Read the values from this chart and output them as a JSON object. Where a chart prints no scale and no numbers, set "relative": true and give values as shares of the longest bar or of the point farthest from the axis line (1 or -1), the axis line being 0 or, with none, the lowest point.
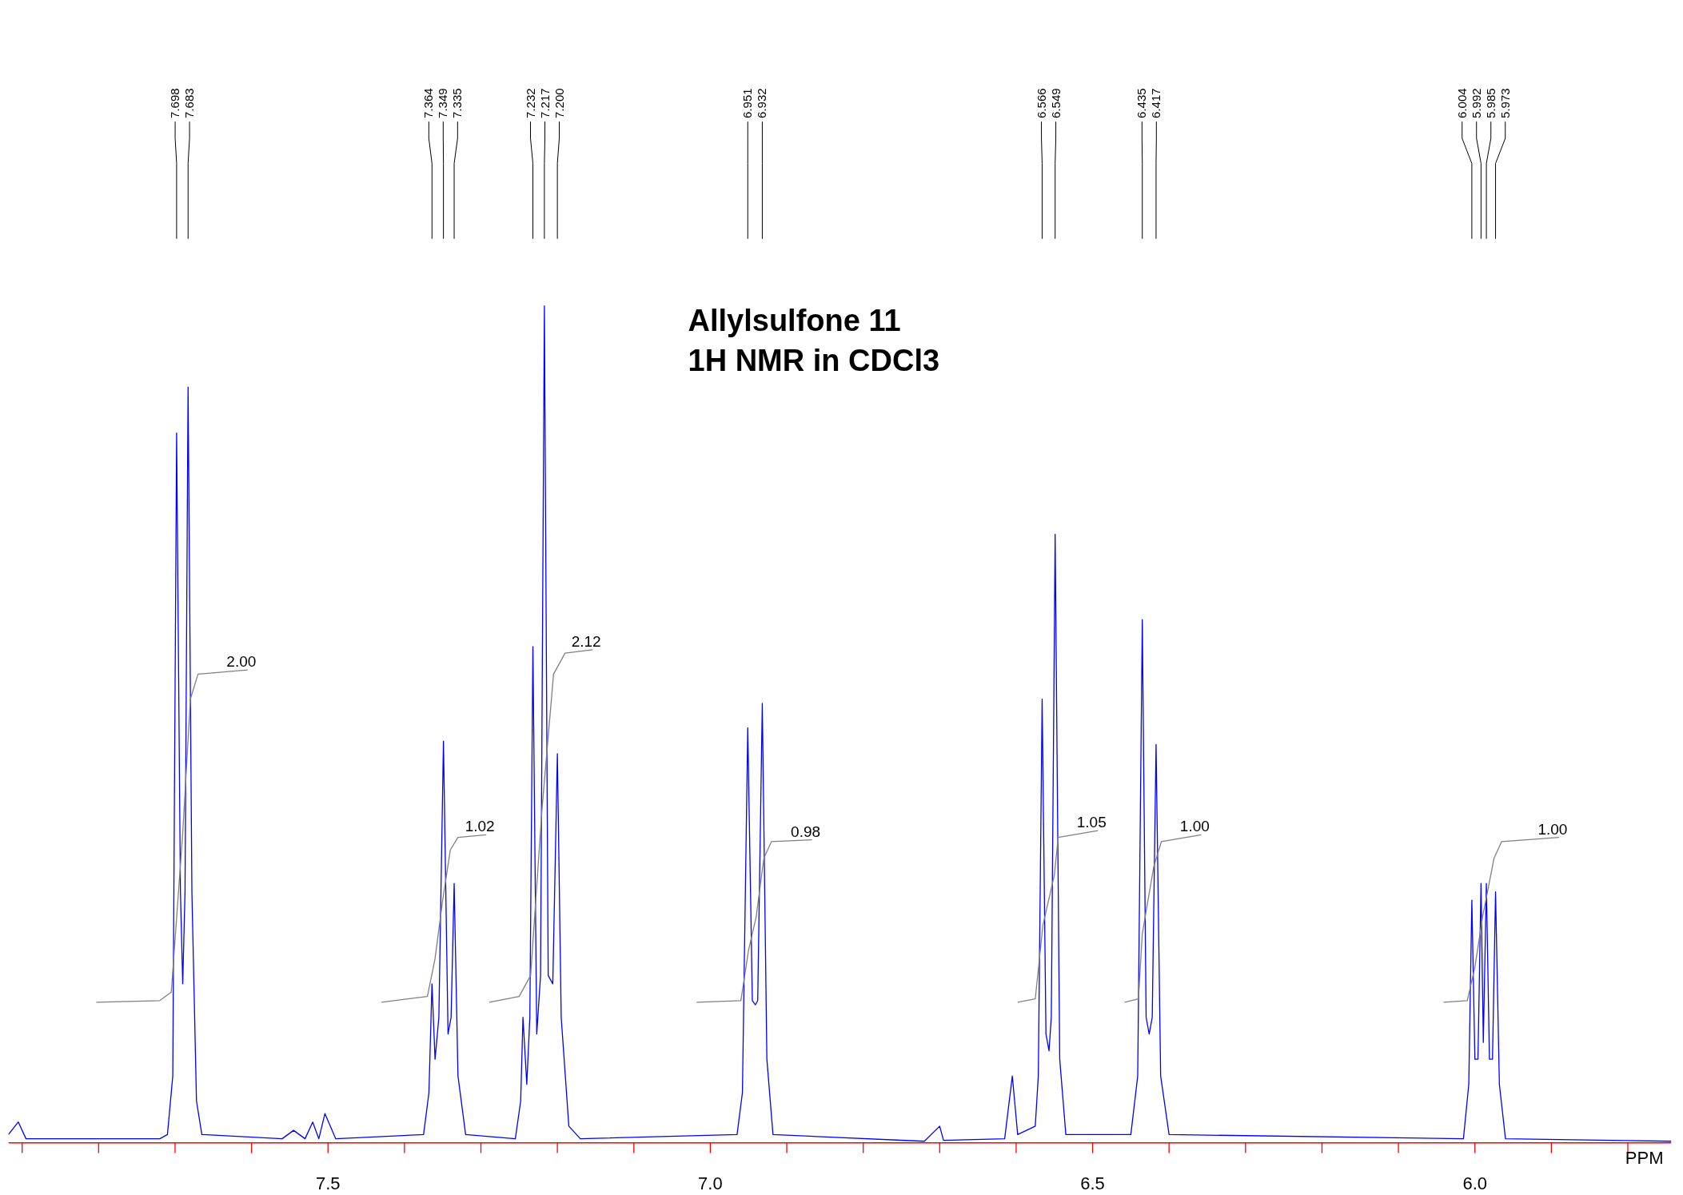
{
  "chart_data": {
    "type": "line",
    "relative": true,
    "title": "Allylsulfone 11\n1H NMR in CDCl3",
    "xlabel": "PPM",
    "xlim": [
      7.918,
      5.743
    ],
    "xticks": [
      {
        "value": 7.9,
        "label": null
      },
      {
        "value": 7.8,
        "label": null
      },
      {
        "value": 7.7,
        "label": null
      },
      {
        "value": 7.6,
        "label": null
      },
      {
        "value": 7.5,
        "label": "7.5"
      },
      {
        "value": 7.4,
        "label": null
      },
      {
        "value": 7.3,
        "label": null
      },
      {
        "value": 7.2,
        "label": null
      },
      {
        "value": 7.1,
        "label": null
      },
      {
        "value": 7.0,
        "label": "7.0"
      },
      {
        "value": 6.9,
        "label": null
      },
      {
        "value": 6.8,
        "label": null
      },
      {
        "value": 6.7,
        "label": null
      },
      {
        "value": 6.6,
        "label": null
      },
      {
        "value": 6.5,
        "label": "6.5"
      },
      {
        "value": 6.4,
        "label": null
      },
      {
        "value": 6.3,
        "label": null
      },
      {
        "value": 6.2,
        "label": null
      },
      {
        "value": 6.1,
        "label": null
      },
      {
        "value": 6.0,
        "label": "6.0"
      },
      {
        "value": 5.9,
        "label": null
      },
      {
        "value": 5.8,
        "label": null
      }
    ],
    "grid": false,
    "series": [
      {
        "color": "#0000ff",
        "x": [
          7.918,
          7.905,
          7.895,
          7.85,
          7.72,
          7.71,
          7.703,
          7.698,
          7.693,
          7.69,
          7.687,
          7.683,
          7.678,
          7.672,
          7.665,
          7.56,
          7.545,
          7.53,
          7.52,
          7.512,
          7.504,
          7.49,
          7.375,
          7.368,
          7.364,
          7.36,
          7.355,
          7.349,
          7.343,
          7.339,
          7.335,
          7.33,
          7.32,
          7.255,
          7.248,
          7.245,
          7.24,
          7.236,
          7.232,
          7.227,
          7.222,
          7.217,
          7.212,
          7.206,
          7.2,
          7.195,
          7.185,
          7.17,
          6.965,
          6.958,
          6.951,
          6.945,
          6.941,
          6.938,
          6.932,
          6.926,
          6.918,
          6.72,
          6.7,
          6.695,
          6.615,
          6.605,
          6.598,
          6.575,
          6.571,
          6.566,
          6.561,
          6.557,
          6.554,
          6.549,
          6.543,
          6.535,
          6.45,
          6.441,
          6.435,
          6.43,
          6.426,
          6.422,
          6.417,
          6.411,
          6.4,
          6.015,
          6.008,
          6.004,
          6.0,
          5.996,
          5.992,
          5.989,
          5.985,
          5.981,
          5.977,
          5.973,
          5.968,
          5.96,
          5.743
        ],
        "values": [
          0.01,
          0.025,
          0.005,
          0.005,
          0.005,
          0.01,
          0.08,
          0.848,
          0.3,
          0.19,
          0.3,
          0.903,
          0.3,
          0.05,
          0.01,
          0.005,
          0.015,
          0.005,
          0.025,
          0.005,
          0.035,
          0.005,
          0.01,
          0.06,
          0.19,
          0.1,
          0.15,
          0.48,
          0.13,
          0.15,
          0.31,
          0.08,
          0.01,
          0.005,
          0.05,
          0.15,
          0.07,
          0.15,
          0.593,
          0.13,
          0.2,
          1.0,
          0.2,
          0.19,
          0.465,
          0.15,
          0.02,
          0.005,
          0.01,
          0.06,
          0.496,
          0.17,
          0.165,
          0.17,
          0.525,
          0.1,
          0.01,
          0.002,
          0.02,
          0.003,
          0.005,
          0.08,
          0.01,
          0.02,
          0.08,
          0.53,
          0.13,
          0.11,
          0.15,
          0.727,
          0.1,
          0.01,
          0.01,
          0.08,
          0.625,
          0.15,
          0.13,
          0.15,
          0.476,
          0.08,
          0.01,
          0.005,
          0.07,
          0.29,
          0.1,
          0.1,
          0.31,
          0.12,
          0.31,
          0.1,
          0.1,
          0.3,
          0.07,
          0.005,
          0.002
        ]
      },
      {
        "color": "#808080",
        "x": [
          7.803,
          7.72,
          7.705,
          7.69,
          7.68,
          7.67,
          7.605,
          null,
          7.43,
          7.37,
          7.36,
          7.35,
          7.34,
          7.33,
          7.293,
          null,
          7.289,
          7.25,
          7.235,
          7.22,
          7.205,
          7.19,
          7.154,
          null,
          7.018,
          6.96,
          6.95,
          6.94,
          6.93,
          6.92,
          6.867,
          null,
          6.598,
          6.575,
          6.565,
          6.55,
          6.545,
          6.493,
          null,
          6.458,
          6.44,
          6.435,
          6.42,
          6.41,
          6.358,
          null,
          6.041,
          6.01,
          6.0,
          5.99,
          5.975,
          5.965,
          5.89
        ],
        "values": [
          0.168,
          0.17,
          0.18,
          0.37,
          0.53,
          0.56,
          0.565,
          null,
          0.168,
          0.175,
          0.22,
          0.29,
          0.35,
          0.365,
          0.368,
          null,
          0.168,
          0.175,
          0.2,
          0.4,
          0.56,
          0.585,
          0.589,
          null,
          0.168,
          0.17,
          0.23,
          0.27,
          0.34,
          0.36,
          0.362,
          null,
          0.168,
          0.172,
          0.26,
          0.32,
          0.365,
          0.373,
          null,
          0.168,
          0.172,
          0.25,
          0.33,
          0.36,
          0.368,
          null,
          0.168,
          0.17,
          0.21,
          0.27,
          0.34,
          0.36,
          0.365
        ]
      }
    ],
    "annotations": [
      {
        "text": "7.698",
        "x": 7.698
      },
      {
        "text": "7.683",
        "x": 7.683
      },
      {
        "text": "7.364",
        "x": 7.364
      },
      {
        "text": "7.349",
        "x": 7.349
      },
      {
        "text": "7.335",
        "x": 7.335
      },
      {
        "text": "7.232",
        "x": 7.232
      },
      {
        "text": "7.217",
        "x": 7.217
      },
      {
        "text": "7.200",
        "x": 7.2
      },
      {
        "text": "6.951",
        "x": 6.951
      },
      {
        "text": "6.932",
        "x": 6.932
      },
      {
        "text": "6.566",
        "x": 6.566
      },
      {
        "text": "6.549",
        "x": 6.549
      },
      {
        "text": "6.435",
        "x": 6.435
      },
      {
        "text": "6.417",
        "x": 6.417
      },
      {
        "text": "6.004",
        "x": 6.004
      },
      {
        "text": "5.992",
        "x": 5.992
      },
      {
        "text": "5.985",
        "x": 5.985
      },
      {
        "text": "5.973",
        "x": 5.973
      },
      {
        "text": "2.00",
        "x": 7.605,
        "y": 0.565
      },
      {
        "text": "1.02",
        "x": 7.293,
        "y": 0.368
      },
      {
        "text": "2.12",
        "x": 7.154,
        "y": 0.589
      },
      {
        "text": "0.98",
        "x": 6.867,
        "y": 0.362
      },
      {
        "text": "1.05",
        "x": 6.493,
        "y": 0.373
      },
      {
        "text": "1.00",
        "x": 6.358,
        "y": 0.368
      },
      {
        "text": "1.00",
        "x": 5.89,
        "y": 0.365
      }
    ]
  }
}
